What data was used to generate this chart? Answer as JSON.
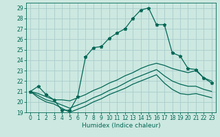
{
  "title": "",
  "xlabel": "Humidex (Indice chaleur)",
  "bg_color": "#cce8e0",
  "grid_color": "#aacccc",
  "line_color": "#006655",
  "xlim": [
    -0.5,
    23.5
  ],
  "ylim": [
    19,
    29.5
  ],
  "yticks": [
    19,
    20,
    21,
    22,
    23,
    24,
    25,
    26,
    27,
    28,
    29
  ],
  "xticks": [
    0,
    1,
    2,
    3,
    4,
    5,
    6,
    7,
    8,
    9,
    10,
    11,
    12,
    13,
    14,
    15,
    16,
    17,
    18,
    19,
    20,
    21,
    22,
    23
  ],
  "line1_x": [
    0,
    1,
    2,
    3,
    4,
    5,
    6,
    7,
    8,
    9,
    10,
    11,
    12,
    13,
    14,
    15,
    16,
    17,
    18,
    19,
    20,
    21,
    22,
    23
  ],
  "line1_y": [
    21.0,
    21.5,
    20.7,
    20.2,
    19.2,
    19.2,
    20.5,
    24.3,
    25.2,
    25.3,
    26.1,
    26.6,
    27.0,
    28.0,
    28.8,
    29.0,
    27.4,
    27.4,
    24.7,
    24.4,
    23.2,
    23.1,
    22.3,
    21.8
  ],
  "line2_x": [
    0,
    1,
    2,
    3,
    4,
    5,
    6,
    7,
    8,
    9,
    10,
    11,
    12,
    13,
    14,
    15,
    16,
    17,
    18,
    19,
    20,
    21,
    22,
    23
  ],
  "line2_y": [
    21.0,
    20.8,
    20.5,
    20.2,
    20.2,
    20.1,
    20.4,
    20.7,
    21.1,
    21.4,
    21.8,
    22.1,
    22.5,
    22.8,
    23.2,
    23.5,
    23.7,
    23.5,
    23.2,
    23.0,
    22.8,
    23.0,
    22.3,
    22.0
  ],
  "line3_x": [
    0,
    1,
    2,
    3,
    4,
    5,
    6,
    7,
    8,
    9,
    10,
    11,
    12,
    13,
    14,
    15,
    16,
    17,
    18,
    19,
    20,
    21,
    22,
    23
  ],
  "line3_y": [
    21.0,
    20.6,
    20.2,
    20.0,
    19.7,
    19.4,
    19.7,
    20.0,
    20.4,
    20.7,
    21.1,
    21.4,
    21.8,
    22.2,
    22.5,
    22.8,
    23.1,
    22.5,
    22.0,
    21.7,
    21.5,
    21.5,
    21.2,
    21.0
  ],
  "line4_x": [
    0,
    1,
    2,
    3,
    4,
    5,
    6,
    7,
    8,
    9,
    10,
    11,
    12,
    13,
    14,
    15,
    16,
    17,
    18,
    19,
    20,
    21,
    22,
    23
  ],
  "line4_y": [
    21.0,
    20.4,
    20.0,
    19.8,
    19.4,
    19.0,
    19.3,
    19.6,
    20.0,
    20.3,
    20.7,
    21.0,
    21.3,
    21.7,
    22.0,
    22.3,
    22.6,
    21.8,
    21.2,
    20.8,
    20.7,
    20.8,
    20.6,
    20.4
  ]
}
